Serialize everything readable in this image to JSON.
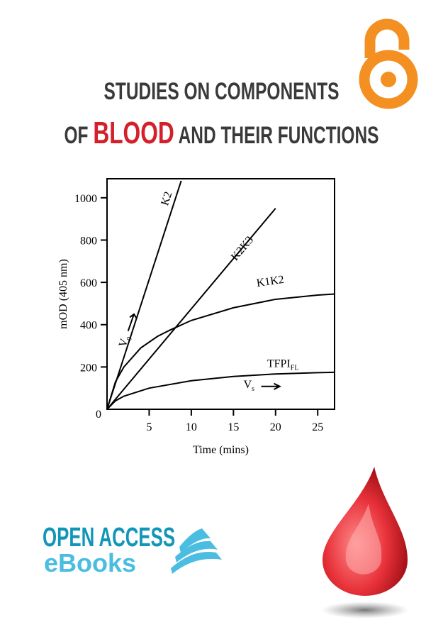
{
  "cover": {
    "title_line1": "STUDIES ON COMPONENTS",
    "title_line2_pre": "OF ",
    "title_line2_highlight": "BLOOD",
    "title_line2_post": " AND THEIR FUNCTIONS",
    "highlight_color": "#d3202a",
    "open_access_icon": "open-access-lock-icon",
    "open_access_color": "#f39021",
    "publisher_logo": {
      "line1": "OPEN ACCESS",
      "line2": "eBooks",
      "color1": "#1196b9",
      "color2": "#4bbde0"
    },
    "decoration": "blood-drop-icon"
  },
  "chart_data": {
    "type": "line",
    "xlabel": "Time (mins)",
    "ylabel": "mOD (405 nm)",
    "xlim": [
      0,
      27
    ],
    "ylim": [
      0,
      1090
    ],
    "xticks": [
      5,
      10,
      15,
      20,
      25
    ],
    "yticks": [
      0,
      200,
      400,
      600,
      800,
      1000
    ],
    "grid": false,
    "series": [
      {
        "name": "K2",
        "x": [
          0,
          8.8
        ],
        "y": [
          0,
          1080
        ]
      },
      {
        "name": "K2K3",
        "x": [
          0,
          20
        ],
        "y": [
          0,
          950
        ]
      },
      {
        "name": "K1K2",
        "x": [
          0,
          1,
          2,
          4,
          6,
          7.5,
          10,
          15,
          20,
          25,
          27
        ],
        "y": [
          0,
          130,
          200,
          290,
          345,
          375,
          420,
          480,
          520,
          540,
          545
        ]
      },
      {
        "name": "TFPI",
        "name_subscript": "FL",
        "x": [
          0,
          1,
          2,
          5,
          10,
          15,
          20,
          25,
          27
        ],
        "y": [
          0,
          40,
          62,
          100,
          135,
          155,
          167,
          173,
          175
        ]
      }
    ],
    "annotations": [
      {
        "text": "V",
        "subscript": "0",
        "arrow": "up-right"
      },
      {
        "text": "V",
        "subscript": "s",
        "arrow": "right"
      }
    ]
  }
}
